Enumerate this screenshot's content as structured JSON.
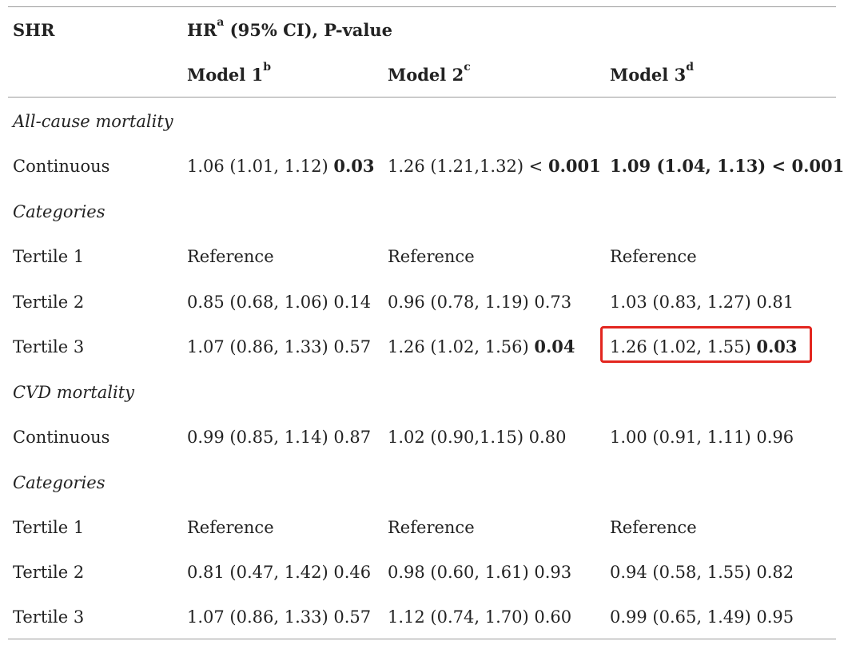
{
  "header": {
    "col0": "SHR",
    "group": {
      "text": "HR",
      "sup": "a",
      "rest": " (95% CI), P-value"
    },
    "models": [
      {
        "text": "Model 1",
        "sup": "b"
      },
      {
        "text": "Model 2",
        "sup": "c"
      },
      {
        "text": "Model 3",
        "sup": "d"
      }
    ]
  },
  "rows": [
    {
      "label": "All-cause mortality"
    },
    {
      "label": "Continuous",
      "cells": [
        {
          "main": "1.06 (1.01, 1.12) ",
          "bold": "0.03"
        },
        {
          "main": "1.26 (1.21,1.32) < ",
          "bold": "0.001"
        },
        {
          "main": "",
          "bold": "1.09 (1.04, 1.13) < 0.001"
        }
      ]
    },
    {
      "label": "Categories"
    },
    {
      "label": "Tertile 1",
      "cells": [
        {
          "main": "Reference",
          "bold": ""
        },
        {
          "main": "Reference",
          "bold": ""
        },
        {
          "main": "Reference",
          "bold": ""
        }
      ]
    },
    {
      "label": "Tertile 2",
      "cells": [
        {
          "main": "0.85 (0.68, 1.06) 0.14",
          "bold": ""
        },
        {
          "main": "0.96 (0.78, 1.19) 0.73",
          "bold": ""
        },
        {
          "main": "1.03 (0.83, 1.27) 0.81",
          "bold": ""
        }
      ]
    },
    {
      "label": "Tertile 3",
      "cells": [
        {
          "main": "1.07 (0.86, 1.33) 0.57",
          "bold": ""
        },
        {
          "main": "1.26 (1.02, 1.56) ",
          "bold": "0.04"
        },
        {
          "main": "1.26 (1.02, 1.55) ",
          "bold": "0.03"
        }
      ]
    },
    {
      "label": "CVD mortality"
    },
    {
      "label": "Continuous",
      "cells": [
        {
          "main": "0.99 (0.85, 1.14) 0.87",
          "bold": ""
        },
        {
          "main": "1.02 (0.90,1.15) 0.80",
          "bold": ""
        },
        {
          "main": "1.00 (0.91, 1.11) 0.96",
          "bold": ""
        }
      ]
    },
    {
      "label": "Categories"
    },
    {
      "label": "Tertile 1",
      "cells": [
        {
          "main": "Reference",
          "bold": ""
        },
        {
          "main": "Reference",
          "bold": ""
        },
        {
          "main": "Reference",
          "bold": ""
        }
      ]
    },
    {
      "label": "Tertile 2",
      "cells": [
        {
          "main": "0.81 (0.47, 1.42) 0.46",
          "bold": ""
        },
        {
          "main": "0.98 (0.60, 1.61) 0.93",
          "bold": ""
        },
        {
          "main": "0.94 (0.58, 1.55) 0.82",
          "bold": ""
        }
      ]
    },
    {
      "label": "Tertile 3",
      "cells": [
        {
          "main": "1.07 (0.86, 1.33) 0.57",
          "bold": ""
        },
        {
          "main": "1.12 (0.74, 1.70) 0.60",
          "bold": ""
        },
        {
          "main": "0.99 (0.65, 1.49) 0.95",
          "bold": ""
        }
      ]
    }
  ],
  "highlight": {
    "color": "#e3261f"
  }
}
